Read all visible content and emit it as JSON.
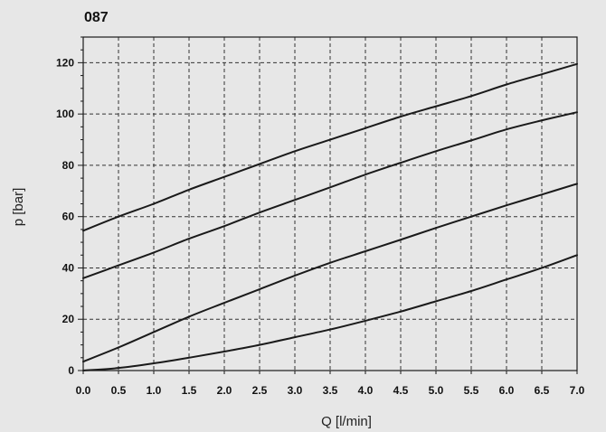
{
  "chart_data": {
    "type": "line",
    "title": "087",
    "xlabel": "Q [l/min]",
    "ylabel": "p [bar]",
    "xlim": [
      0,
      7
    ],
    "ylim": [
      0,
      130
    ],
    "x_ticks": [
      0,
      0.5,
      1,
      1.5,
      2,
      2.5,
      3,
      3.5,
      4,
      4.5,
      5,
      5.5,
      6,
      6.5,
      7
    ],
    "x_tick_labels": [
      "0.0",
      "0.5",
      "1.0",
      "1.5",
      "2.0",
      "2.5",
      "3.0",
      "3.5",
      "4.0",
      "4.5",
      "5.0",
      "5.5",
      "6.0",
      "6.5",
      "7.0"
    ],
    "y_ticks": [
      0,
      20,
      40,
      60,
      80,
      100,
      120
    ],
    "y_tick_labels": [
      "0",
      "20",
      "40",
      "60",
      "80",
      "100",
      "120"
    ],
    "y_minor_tick_step": 5,
    "grid": true,
    "x": [
      0,
      0.5,
      1,
      1.5,
      2,
      2.5,
      3,
      3.5,
      4,
      4.5,
      5,
      5.5,
      6,
      6.5,
      7
    ],
    "series": [
      {
        "values": [
          54.5,
          60,
          65,
          70.5,
          75.5,
          80.5,
          85.5,
          90,
          94.5,
          99,
          103,
          107,
          111.5,
          115.5,
          119.5
        ]
      },
      {
        "values": [
          36,
          41,
          46,
          51.4,
          56.3,
          61.6,
          66.5,
          71.4,
          76.4,
          81,
          85.5,
          89.7,
          94,
          97.5,
          100.7
        ]
      },
      {
        "values": [
          3.5,
          9,
          15,
          21,
          26.4,
          31.7,
          37,
          42,
          46.5,
          51,
          55.6,
          60,
          64.4,
          68.6,
          72.8
        ]
      },
      {
        "values": [
          0,
          1,
          2.8,
          5,
          7.4,
          10,
          13,
          16,
          19.4,
          23,
          27,
          31,
          35.5,
          40,
          45
        ]
      }
    ]
  },
  "colors": {
    "background": "#e7e7e7",
    "curve": "#1a1a1a",
    "grid": "#333333",
    "frame": "#1a1a1a"
  }
}
